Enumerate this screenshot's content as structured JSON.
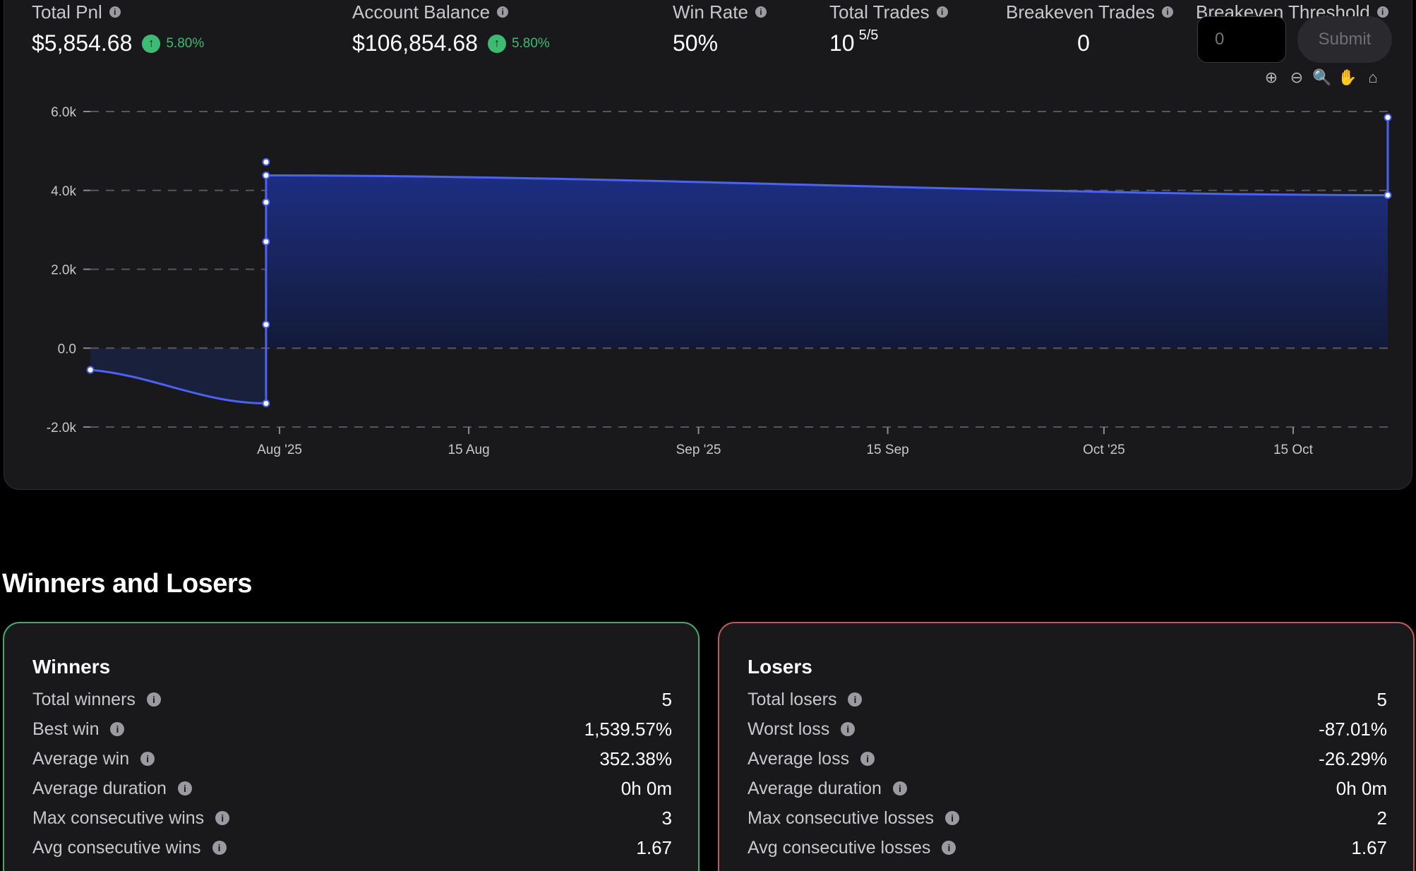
{
  "stats": {
    "total_pnl": {
      "label": "Total Pnl",
      "value": "$5,854.68",
      "change": "5.80%"
    },
    "account_balance": {
      "label": "Account Balance",
      "value": "$106,854.68",
      "change": "5.80%"
    },
    "win_rate": {
      "label": "Win Rate",
      "value": "50%"
    },
    "total_trades": {
      "label": "Total Trades",
      "value": "10",
      "sub": "5/5"
    },
    "breakeven_trades": {
      "label": "Breakeven Trades",
      "value": "0"
    },
    "breakeven_threshold": {
      "label": "Breakeven Threshold",
      "placeholder": "0",
      "submit_label": "Submit"
    }
  },
  "chart_tools": [
    {
      "name": "zoom-in-icon",
      "glyph": "⊕"
    },
    {
      "name": "zoom-out-icon",
      "glyph": "⊖"
    },
    {
      "name": "zoom-select-icon",
      "glyph": "🔍"
    },
    {
      "name": "pan-icon",
      "glyph": "✋"
    },
    {
      "name": "reset-home-icon",
      "glyph": "⌂"
    }
  ],
  "chart_data": {
    "type": "area",
    "title": "",
    "xlabel": "",
    "ylabel": "",
    "x_ticks": [
      {
        "label": "Aug '25",
        "date": "2025-08-01"
      },
      {
        "label": "15 Aug",
        "date": "2025-08-15"
      },
      {
        "label": "Sep '25",
        "date": "2025-09-01"
      },
      {
        "label": "15 Sep",
        "date": "2025-09-15"
      },
      {
        "label": "Oct '25",
        "date": "2025-10-01"
      },
      {
        "label": "15 Oct",
        "date": "2025-10-15"
      }
    ],
    "y_ticks": [
      {
        "label": "6.0k",
        "value": 6000
      },
      {
        "label": "4.0k",
        "value": 4000
      },
      {
        "label": "2.0k",
        "value": 2000
      },
      {
        "label": "0.0",
        "value": 0
      },
      {
        "label": "-2.0k",
        "value": -2000
      }
    ],
    "ylim": [
      -2000,
      6000
    ],
    "xlim": [
      "2025-07-18",
      "2025-10-22"
    ],
    "grid": true,
    "series": [
      {
        "x": [
          "2025-07-18",
          "2025-07-31",
          "2025-07-31",
          "2025-07-31",
          "2025-07-31",
          "2025-07-31",
          "2025-07-31",
          "2025-10-22",
          "2025-10-22"
        ],
        "y": [
          -550,
          -1400,
          600,
          2700,
          3700,
          4380,
          4720,
          3880,
          5850
        ],
        "color": "#4c63f0"
      }
    ]
  },
  "section_title": "Winners and Losers",
  "winners": {
    "title": "Winners",
    "rows": [
      {
        "label": "Total winners",
        "value": "5"
      },
      {
        "label": "Best win",
        "value": "1,539.57%"
      },
      {
        "label": "Average win",
        "value": "352.38%"
      },
      {
        "label": "Average duration",
        "value": "0h 0m"
      },
      {
        "label": "Max consecutive wins",
        "value": "3"
      },
      {
        "label": "Avg consecutive wins",
        "value": "1.67"
      }
    ]
  },
  "losers": {
    "title": "Losers",
    "rows": [
      {
        "label": "Total losers",
        "value": "5"
      },
      {
        "label": "Worst loss",
        "value": "-87.01%"
      },
      {
        "label": "Average loss",
        "value": "-26.29%"
      },
      {
        "label": "Average duration",
        "value": "0h 0m"
      },
      {
        "label": "Max consecutive losses",
        "value": "2"
      },
      {
        "label": "Avg consecutive losses",
        "value": "1.67"
      }
    ]
  },
  "colors": {
    "accent_green": "#3dbb73",
    "winner_border": "#45a870",
    "loser_border": "#c45757",
    "line": "#4c63f0"
  }
}
